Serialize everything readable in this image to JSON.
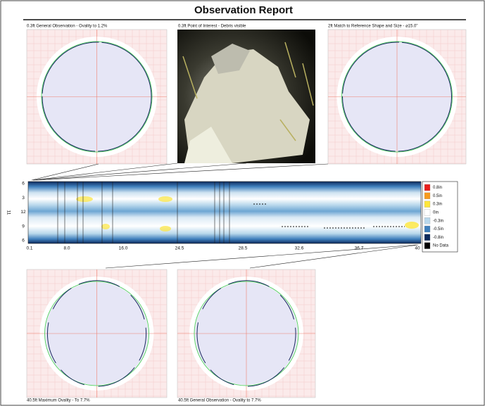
{
  "header": {
    "title": "Observation Report"
  },
  "panels": [
    {
      "caption": "0.3ft General Observation - Ovality to 1.2%"
    },
    {
      "caption": "0.3ft Point of Interest - Debris visible"
    },
    {
      "caption": "2ft Match to Reference Shape and Size - ⌀15.0\""
    },
    {
      "caption": "40.5ft Maximum Ovality - To 7.7%"
    },
    {
      "caption": "40.5ft General Observation - Ovality to 7.7%"
    }
  ],
  "strip": {
    "axis_title": "11",
    "y_labels": [
      "6",
      "3",
      "12",
      "9",
      "6"
    ],
    "x_labels": [
      "0.1",
      "8.0",
      "16.0",
      "24.5",
      "28.5",
      "32.6",
      "36.7",
      "40"
    ],
    "legend": [
      {
        "label": "0.8in",
        "color": "#e81e1a"
      },
      {
        "label": "0.5in",
        "color": "#f79a1c"
      },
      {
        "label": "0.3in",
        "color": "#fde63a"
      },
      {
        "label": "0in",
        "color": "#ffffff"
      },
      {
        "label": "-0.3in",
        "color": "#b9d8ec"
      },
      {
        "label": "-0.5in",
        "color": "#3f7fbc"
      },
      {
        "label": "-0.8in",
        "color": "#0d2a5c"
      },
      {
        "label": "No Data",
        "color": "#000000"
      }
    ]
  }
}
